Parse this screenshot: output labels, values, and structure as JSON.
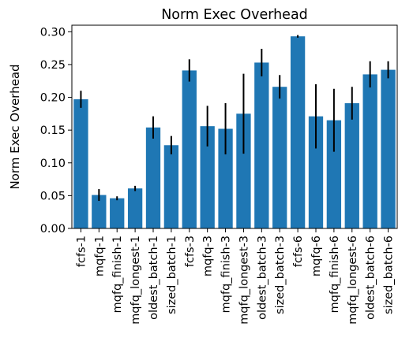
{
  "chart_data": {
    "type": "bar",
    "title": "Norm Exec Overhead",
    "xlabel": "",
    "ylabel": "Norm Exec Overhead",
    "ylim": [
      0,
      0.31
    ],
    "yticks": [
      "0.00",
      "0.05",
      "0.10",
      "0.15",
      "0.20",
      "0.25",
      "0.30"
    ],
    "ytick_values": [
      0,
      0.05,
      0.1,
      0.15,
      0.2,
      0.25,
      0.3
    ],
    "bar_color": "#1f77b4",
    "error_color": "#000000",
    "categories": [
      "fcfs-1",
      "mqfq-1",
      "mqfq_finish-1",
      "mqfq_longest-1",
      "oldest_batch-1",
      "sized_batch-1",
      "fcfs-3",
      "mqfq-3",
      "mqfq_finish-3",
      "mqfq_longest-3",
      "oldest_batch-3",
      "sized_batch-3",
      "fcfs-6",
      "mqfq-6",
      "mqfq_finish-6",
      "mqfq_longest-6",
      "oldest_batch-6",
      "sized_batch-6"
    ],
    "values": [
      0.197,
      0.051,
      0.046,
      0.061,
      0.154,
      0.127,
      0.241,
      0.156,
      0.152,
      0.175,
      0.253,
      0.216,
      0.293,
      0.171,
      0.165,
      0.191,
      0.235,
      0.242
    ],
    "errors": [
      0.013,
      0.009,
      0.003,
      0.004,
      0.017,
      0.014,
      0.017,
      0.031,
      0.039,
      0.061,
      0.021,
      0.018,
      0.002,
      0.049,
      0.048,
      0.025,
      0.02,
      0.013
    ]
  }
}
